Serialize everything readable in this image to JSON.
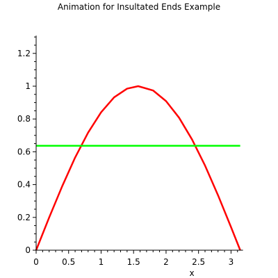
{
  "chart_data": {
    "type": "line",
    "title": "Animation for Insultated Ends Example",
    "xlabel": "x",
    "ylabel": "",
    "xlim": [
      0,
      3.14159
    ],
    "ylim": [
      0,
      1.3
    ],
    "grid": false,
    "x_ticks": [
      {
        "value": 0,
        "label": "0"
      },
      {
        "value": 0.5,
        "label": "0.5"
      },
      {
        "value": 1,
        "label": "1"
      },
      {
        "value": 1.5,
        "label": "1.5"
      },
      {
        "value": 2,
        "label": "2"
      },
      {
        "value": 2.5,
        "label": "2.5"
      },
      {
        "value": 3,
        "label": "3"
      }
    ],
    "y_ticks": [
      {
        "value": 0,
        "label": "0"
      },
      {
        "value": 0.2,
        "label": "0.2"
      },
      {
        "value": 0.4,
        "label": "0.4"
      },
      {
        "value": 0.6,
        "label": "0.6"
      },
      {
        "value": 0.8,
        "label": "0.8"
      },
      {
        "value": 1,
        "label": "1"
      },
      {
        "value": 1.2,
        "label": "1.2"
      }
    ],
    "series": [
      {
        "color": "#ff0000",
        "x": [
          0,
          0.2,
          0.4,
          0.6,
          0.8,
          1.0,
          1.2,
          1.4,
          1.5708,
          1.8,
          2.0,
          2.2,
          2.4,
          2.6,
          2.8,
          3.0,
          3.14159
        ],
        "y": [
          0,
          0.199,
          0.389,
          0.565,
          0.717,
          0.841,
          0.932,
          0.985,
          1.0,
          0.974,
          0.909,
          0.808,
          0.675,
          0.516,
          0.335,
          0.141,
          0
        ]
      },
      {
        "color": "#00ff00",
        "x": [
          0,
          3.14159
        ],
        "y": [
          0.6366,
          0.6366
        ]
      }
    ]
  }
}
